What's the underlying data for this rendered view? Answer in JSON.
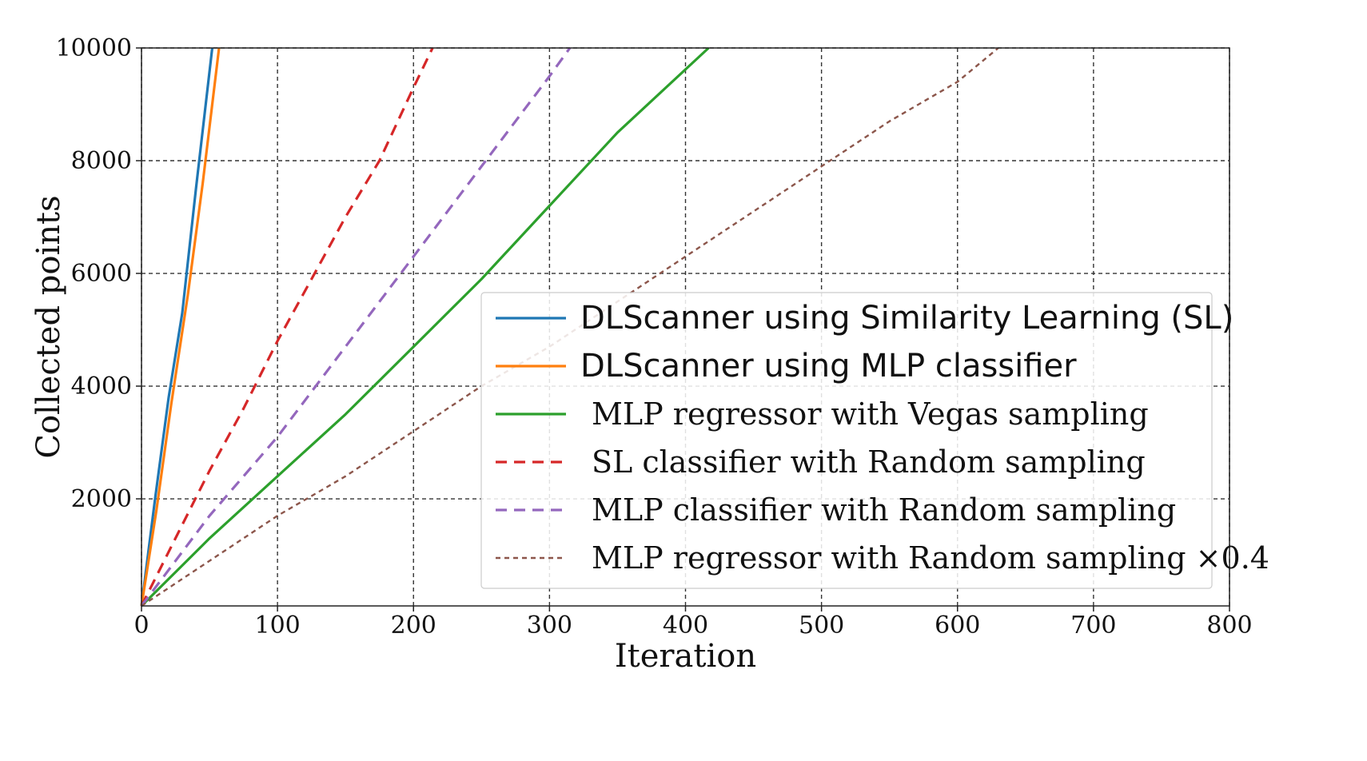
{
  "chart_data": {
    "type": "line",
    "title": "",
    "xlabel": "Iteration",
    "ylabel": "Collected points",
    "xlim": [
      0,
      800
    ],
    "ylim": [
      100,
      10000
    ],
    "xticks": [
      0,
      100,
      200,
      300,
      400,
      500,
      600,
      700,
      800
    ],
    "yticks": [
      2000,
      4000,
      6000,
      8000,
      10000
    ],
    "grid": true,
    "grid_style": "dashed",
    "legend_position": "lower-right",
    "series": [
      {
        "name": "DLScanner using Similarity Learning (SL)",
        "color": "#1f77b4",
        "style": "solid",
        "legend_font": "sans",
        "points": [
          [
            0,
            100
          ],
          [
            10,
            2000
          ],
          [
            20,
            3800
          ],
          [
            30,
            5300
          ],
          [
            40,
            7500
          ],
          [
            52,
            10000
          ]
        ]
      },
      {
        "name": "DLScanner using MLP classifier",
        "color": "#ff7f0e",
        "style": "solid",
        "legend_font": "sans",
        "points": [
          [
            0,
            100
          ],
          [
            11,
            1800
          ],
          [
            22,
            3700
          ],
          [
            34,
            5600
          ],
          [
            45,
            7600
          ],
          [
            57,
            10000
          ]
        ]
      },
      {
        "name": "MLP regressor with Vegas sampling",
        "color": "#2ca02c",
        "style": "solid",
        "legend_font": "serif",
        "points": [
          [
            0,
            100
          ],
          [
            50,
            1300
          ],
          [
            100,
            2400
          ],
          [
            150,
            3500
          ],
          [
            200,
            4700
          ],
          [
            250,
            5900
          ],
          [
            300,
            7200
          ],
          [
            350,
            8500
          ],
          [
            417,
            10000
          ]
        ]
      },
      {
        "name": "SL classifier with Random sampling",
        "color": "#d62728",
        "style": "dashed",
        "legend_font": "serif",
        "points": [
          [
            0,
            100
          ],
          [
            25,
            1300
          ],
          [
            50,
            2500
          ],
          [
            75,
            3600
          ],
          [
            100,
            4800
          ],
          [
            125,
            5900
          ],
          [
            150,
            7000
          ],
          [
            175,
            8000
          ],
          [
            200,
            9300
          ],
          [
            214,
            10000
          ]
        ]
      },
      {
        "name": "MLP classifier with Random sampling",
        "color": "#9467bd",
        "style": "dashed",
        "legend_font": "serif",
        "points": [
          [
            0,
            100
          ],
          [
            50,
            1700
          ],
          [
            100,
            3100
          ],
          [
            150,
            4700
          ],
          [
            200,
            6300
          ],
          [
            250,
            7900
          ],
          [
            300,
            9500
          ],
          [
            315,
            10000
          ]
        ]
      },
      {
        "name": "MLP regressor with Random sampling ×0.4",
        "color": "#8c564b",
        "style": "dotted",
        "legend_font": "serif",
        "points": [
          [
            0,
            100
          ],
          [
            50,
            900
          ],
          [
            100,
            1700
          ],
          [
            150,
            2400
          ],
          [
            200,
            3200
          ],
          [
            250,
            4000
          ],
          [
            300,
            4700
          ],
          [
            350,
            5500
          ],
          [
            400,
            6300
          ],
          [
            450,
            7100
          ],
          [
            500,
            7900
          ],
          [
            550,
            8700
          ],
          [
            600,
            9400
          ],
          [
            630,
            10000
          ]
        ]
      }
    ]
  }
}
